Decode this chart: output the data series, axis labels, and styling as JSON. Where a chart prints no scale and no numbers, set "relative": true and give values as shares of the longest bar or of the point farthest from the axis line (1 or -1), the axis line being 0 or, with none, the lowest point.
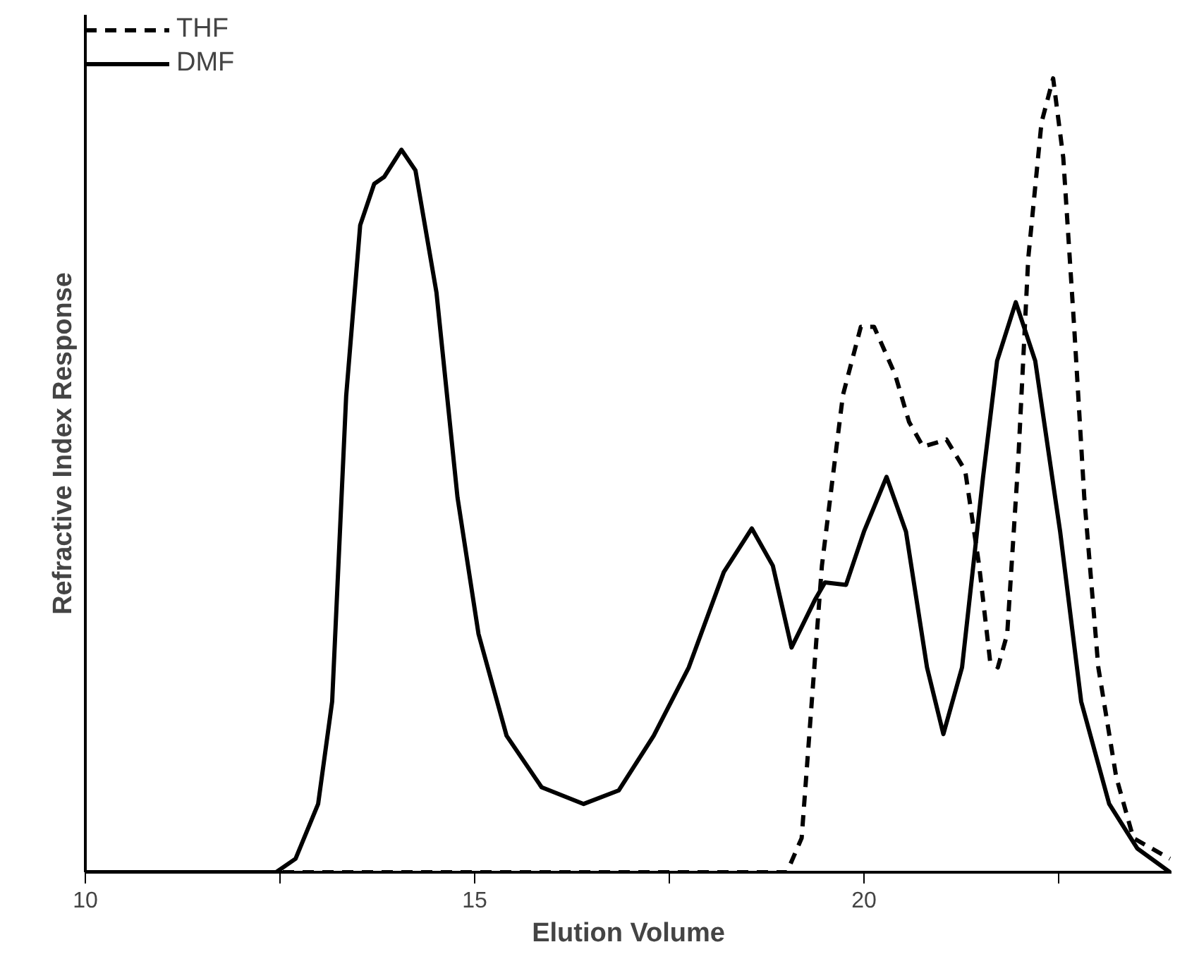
{
  "chart_data": {
    "type": "line",
    "xlabel": "Elution Volume",
    "ylabel": "Refractive Index Response",
    "relative": true,
    "xlim": [
      10,
      23.95
    ],
    "xticks": [
      10,
      {
        "value": 12.5,
        "label": null
      },
      15,
      {
        "value": 17.5,
        "label": null
      },
      20,
      {
        "value": 22.5,
        "label": null
      }
    ],
    "legend": "top left",
    "grid": false,
    "tick_labels": "x",
    "series": [
      {
        "name": "THF",
        "color": "#000000",
        "line_style": "dashed",
        "x": [
          10,
          12,
          14,
          16,
          18,
          19.01,
          19.2,
          19.33,
          19.46,
          19.6,
          19.73,
          19.96,
          20.13,
          20.4,
          20.58,
          20.76,
          21.06,
          21.3,
          21.48,
          21.62,
          21.72,
          21.84,
          21.98,
          22.11,
          22.28,
          22.43,
          22.56,
          22.7,
          22.83,
          23.01,
          23.24,
          23.46,
          23.93
        ],
        "values": [
          0,
          0,
          0,
          0,
          0,
          0,
          0.043,
          0.215,
          0.386,
          0.498,
          0.601,
          0.687,
          0.687,
          0.627,
          0.567,
          0.536,
          0.545,
          0.506,
          0.386,
          0.266,
          0.258,
          0.3,
          0.515,
          0.773,
          0.944,
          1.0,
          0.9,
          0.687,
          0.472,
          0.258,
          0.12,
          0.043,
          0.017
        ]
      },
      {
        "name": "DMF",
        "color": "#000000",
        "line_style": "solid",
        "x": [
          10,
          12.45,
          12.7,
          12.99,
          13.17,
          13.35,
          13.53,
          13.71,
          13.84,
          14.06,
          14.24,
          14.51,
          14.78,
          15.05,
          15.41,
          15.86,
          16.4,
          16.85,
          17.3,
          17.75,
          18.2,
          18.56,
          18.83,
          19.07,
          19.37,
          19.5,
          19.77,
          20.0,
          20.29,
          20.54,
          20.81,
          21.02,
          21.26,
          21.53,
          21.71,
          21.95,
          22.2,
          22.52,
          22.79,
          23.15,
          23.51,
          23.93
        ],
        "values": [
          0,
          0,
          0.017,
          0.086,
          0.215,
          0.6,
          0.815,
          0.867,
          0.876,
          0.91,
          0.884,
          0.73,
          0.472,
          0.3,
          0.172,
          0.107,
          0.086,
          0.103,
          0.172,
          0.258,
          0.378,
          0.433,
          0.386,
          0.283,
          0.343,
          0.365,
          0.362,
          0.429,
          0.498,
          0.429,
          0.258,
          0.174,
          0.258,
          0.498,
          0.644,
          0.718,
          0.644,
          0.429,
          0.215,
          0.086,
          0.03,
          0
        ]
      }
    ]
  }
}
